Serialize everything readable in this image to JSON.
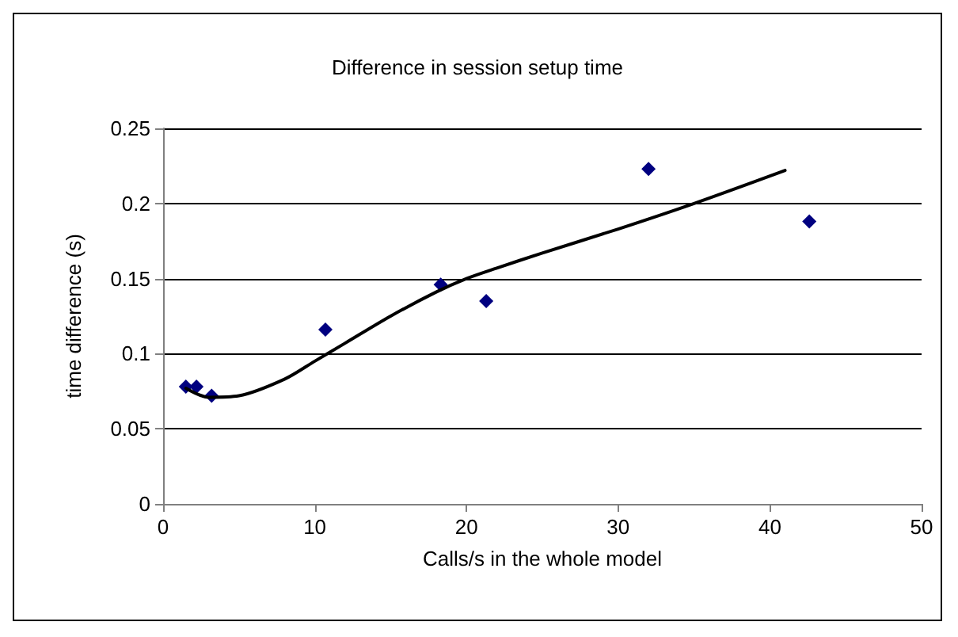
{
  "chart_data": {
    "type": "scatter",
    "title": "Difference in session setup time",
    "xlabel": "Calls/s in the whole model",
    "ylabel": "time difference (s)",
    "xlim": [
      0,
      50
    ],
    "xticks": [
      0,
      10,
      20,
      30,
      40,
      50
    ],
    "ylim": [
      0,
      0.25
    ],
    "yticks": [
      0,
      0.05,
      0.1,
      0.15,
      0.2,
      0.25
    ],
    "grid": "y",
    "series": [
      {
        "color": "#000080",
        "marker": "diamond",
        "x": [
          1.5,
          2.2,
          3.2,
          10.7,
          18.3,
          21.3,
          32,
          42.6
        ],
        "values": [
          0.078,
          0.078,
          0.072,
          0.116,
          0.146,
          0.135,
          0.223,
          0.188
        ]
      },
      {
        "type": "line",
        "color": "#000000",
        "marker": "none",
        "line_style": "solid",
        "x": [
          1.5,
          3,
          5,
          8,
          10,
          12,
          15,
          18,
          20,
          22,
          25,
          30,
          35,
          41
        ],
        "values": [
          0.077,
          0.071,
          0.072,
          0.083,
          0.095,
          0.107,
          0.125,
          0.141,
          0.15,
          0.157,
          0.167,
          0.183,
          0.2,
          0.222
        ]
      }
    ]
  }
}
